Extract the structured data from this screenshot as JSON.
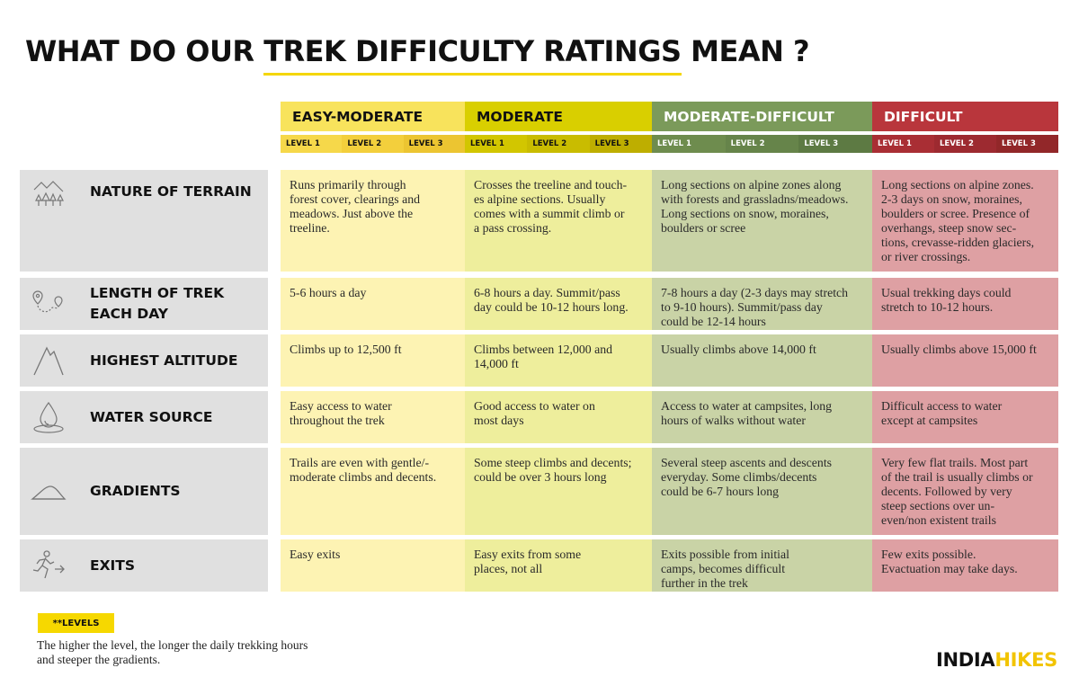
{
  "title": {
    "part1": "WHAT DO OUR ",
    "highlight": "TREK DIFFICULTY RATINGS",
    "part2": " MEAN ?"
  },
  "categories": [
    {
      "name": "EASY-MODERATE",
      "levels": [
        "LEVEL 1",
        "LEVEL 2",
        "LEVEL 3"
      ]
    },
    {
      "name": "MODERATE",
      "levels": [
        "LEVEL 1",
        "LEVEL 2",
        "LEVEL 3"
      ]
    },
    {
      "name": "MODERATE-DIFFICULT",
      "levels": [
        "LEVEL 1",
        "LEVEL 2",
        "LEVEL 3"
      ]
    },
    {
      "name": "DIFFICULT",
      "levels": [
        "LEVEL 1",
        "LEVEL 2",
        "LEVEL 3"
      ]
    }
  ],
  "rows": [
    {
      "label": [
        "NATURE OF TERRAIN"
      ],
      "icon": "trees-mountains-icon",
      "cells": [
        [
          "Runs primarily through",
          "forest cover, clearings and",
          "meadows. Just above the",
          "treeline."
        ],
        [
          "Crosses the treeline and touch-",
          "es alpine sections. Usually",
          "comes with a summit climb or",
          "a pass crossing."
        ],
        [
          "Long sections on alpine zones along",
          "with forests and grassladns/meadows.",
          "Long sections on snow, moraines,",
          "boulders or scree"
        ],
        [
          "Long sections on alpine zones.",
          "2-3 days on snow, moraines,",
          "boulders or scree. Presence of",
          "overhangs, steep snow sec-",
          "tions, crevasse-ridden glaciers,",
          "or river crossings."
        ]
      ]
    },
    {
      "label": [
        "LENGTH OF TREK",
        "EACH DAY"
      ],
      "icon": "route-pins-icon",
      "cells": [
        [
          "5-6 hours a day"
        ],
        [
          "6-8  hours a day. Summit/pass",
          "day could be 10-12 hours long."
        ],
        [
          "7-8 hours a day (2-3 days may stretch",
          "to 9-10 hours). Summit/pass day",
          "could be 12-14 hours"
        ],
        [
          "Usual trekking days could",
          "stretch to 10-12 hours."
        ]
      ]
    },
    {
      "label": [
        "HIGHEST ALTITUDE"
      ],
      "icon": "peak-icon",
      "cells": [
        [
          "Climbs up to 12,500 ft"
        ],
        [
          "Climbs between 12,000 and",
          "14,000 ft"
        ],
        [
          "Usually climbs above 14,000 ft"
        ],
        [
          "Usually climbs above 15,000 ft"
        ]
      ]
    },
    {
      "label": [
        "WATER SOURCE"
      ],
      "icon": "water-drop-icon",
      "cells": [
        [
          "Easy access to water",
          "throughout the trek"
        ],
        [
          "Good access to water on",
          "most days"
        ],
        [
          "Access to water at campsites, long",
          "hours of walks without water"
        ],
        [
          "Difficult access to water",
          "except at campsites"
        ]
      ]
    },
    {
      "label": [
        "GRADIENTS"
      ],
      "icon": "slope-icon",
      "cells": [
        [
          "Trails are even with gentle/-",
          "moderate climbs and decents."
        ],
        [
          "Some steep climbs and decents;",
          "could be over 3 hours long"
        ],
        [
          "Several steep ascents and descents",
          "everyday. Some climbs/decents",
          "could be 6-7 hours long"
        ],
        [
          "Very few flat trails. Most part",
          "of the trail is usually climbs or",
          "decents. Followed by very",
          "steep sections over un-",
          "even/non existent trails"
        ]
      ]
    },
    {
      "label": [
        "EXITS"
      ],
      "icon": "exit-runner-icon",
      "cells": [
        [
          "Easy exits"
        ],
        [
          "Easy exits from some",
          "places, not all"
        ],
        [
          "Exits possible from initial",
          "camps, becomes difficult",
          "further in the trek"
        ],
        [
          "Few exits possible.",
          "Evactuation may take days."
        ]
      ]
    }
  ],
  "footnote": {
    "badge": "**LEVELS",
    "text": [
      "The higher the level, the longer the daily trekking hours",
      "and steeper the gradients."
    ]
  },
  "brand": {
    "part1": "INDIA",
    "part2": "HIKES"
  },
  "colors": {
    "header": [
      "#f8e35c",
      "#d9cf00",
      "#7b9a5a",
      "#b9363c"
    ],
    "cells": [
      "#fdf3b3",
      "#eeee9c",
      "#c9d3a6",
      "#dea0a3"
    ],
    "accent": "#f4d600"
  }
}
